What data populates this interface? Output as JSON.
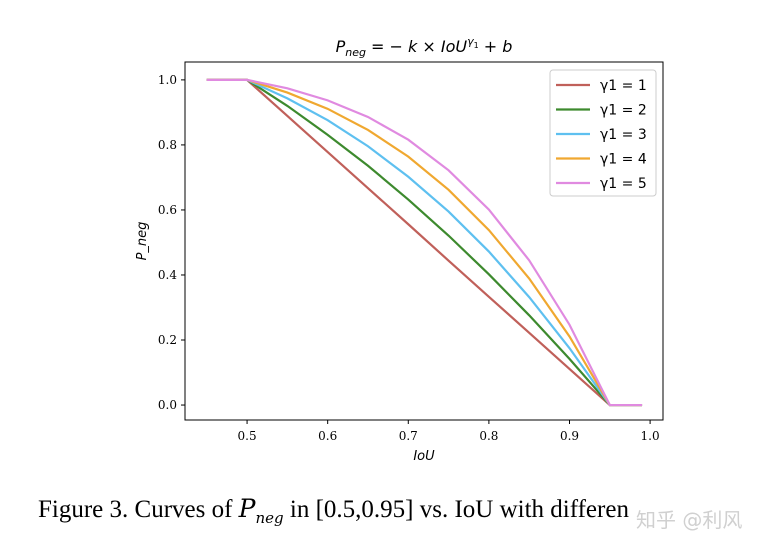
{
  "chart_data": {
    "type": "line",
    "title": "P_neg = − k × IoU^γ1 + b",
    "xlabel": "IoU",
    "ylabel": "P_neg",
    "xlim": [
      0.423,
      1.016
    ],
    "ylim": [
      -0.046,
      1.055
    ],
    "xticks": [
      "0.5",
      "0.6",
      "0.7",
      "0.8",
      "0.9",
      "1.0"
    ],
    "yticks": [
      "0.0",
      "0.2",
      "0.4",
      "0.6",
      "0.8",
      "1.0"
    ],
    "grid": false,
    "legend_position": "top-right",
    "x": [
      0.45,
      0.5,
      0.55,
      0.6,
      0.65,
      0.7,
      0.75,
      0.8,
      0.85,
      0.9,
      0.95,
      0.99
    ],
    "series": [
      {
        "name": "γ1 = 1",
        "color": "#c0605a",
        "values": [
          1,
          1,
          0.889,
          0.778,
          0.667,
          0.556,
          0.444,
          0.333,
          0.222,
          0.111,
          0,
          0
        ]
      },
      {
        "name": "γ1 = 2",
        "color": "#3d8a2e",
        "values": [
          1,
          1,
          0.92,
          0.831,
          0.736,
          0.632,
          0.521,
          0.402,
          0.276,
          0.142,
          0,
          0
        ]
      },
      {
        "name": "γ1 = 3",
        "color": "#5ec0f0",
        "values": [
          1,
          1,
          0.943,
          0.876,
          0.796,
          0.702,
          0.595,
          0.472,
          0.332,
          0.175,
          0,
          0
        ]
      },
      {
        "name": "γ1 = 4",
        "color": "#f0a830",
        "values": [
          1,
          1,
          0.961,
          0.911,
          0.846,
          0.764,
          0.662,
          0.538,
          0.389,
          0.211,
          0,
          0
        ]
      },
      {
        "name": "γ1 = 5",
        "color": "#e08ae0",
        "values": [
          1,
          1,
          0.974,
          0.937,
          0.886,
          0.816,
          0.722,
          0.601,
          0.445,
          0.247,
          0,
          0
        ]
      }
    ]
  },
  "caption": {
    "prefix": "Figure 3. Curves of ",
    "math": "P",
    "math_sub": "neg",
    "suffix": " in [0.5,0.95] vs. IoU with differen"
  },
  "watermark": "知乎 @利风"
}
